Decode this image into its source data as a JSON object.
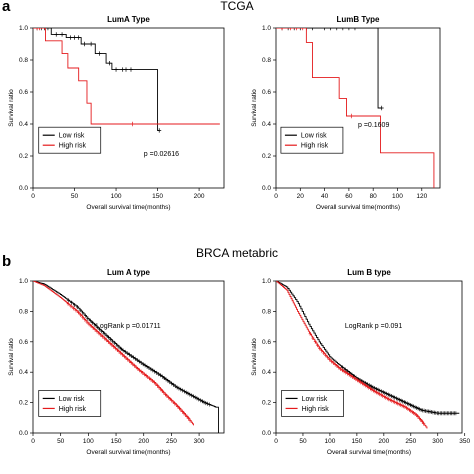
{
  "figure": {
    "section_a": {
      "letter": "a",
      "title": "TCGA"
    },
    "section_b": {
      "letter": "b",
      "title": "BRCA metabric"
    }
  },
  "chart_data": [
    {
      "type": "line",
      "title": "LumA Type",
      "xlabel": "Overall survival time(months)",
      "ylabel": "Survival ratio",
      "xlim": [
        0,
        230
      ],
      "ylim": [
        0,
        1.0
      ],
      "xticks": [
        0,
        50,
        100,
        150,
        200
      ],
      "yticks": [
        0.0,
        0.2,
        0.4,
        0.6,
        0.8,
        1.0
      ],
      "annotation": "p =0.02616",
      "legend": {
        "placement": "bottom-left",
        "entries": [
          "Low risk",
          "High risk"
        ]
      },
      "series": [
        {
          "name": "Low risk",
          "color": "#000000",
          "steps": [
            [
              0,
              1.0
            ],
            [
              22,
              0.96
            ],
            [
              40,
              0.94
            ],
            [
              58,
              0.9
            ],
            [
              75,
              0.84
            ],
            [
              88,
              0.78
            ],
            [
              95,
              0.74
            ],
            [
              150,
              0.36
            ]
          ],
          "censors": [
            [
              5,
              1.0
            ],
            [
              10,
              1.0
            ],
            [
              14,
              1.0
            ],
            [
              18,
              1.0
            ],
            [
              28,
              0.96
            ],
            [
              35,
              0.96
            ],
            [
              45,
              0.94
            ],
            [
              50,
              0.94
            ],
            [
              55,
              0.94
            ],
            [
              62,
              0.9
            ],
            [
              70,
              0.9
            ],
            [
              80,
              0.84
            ],
            [
              92,
              0.78
            ],
            [
              100,
              0.74
            ],
            [
              108,
              0.74
            ],
            [
              112,
              0.74
            ],
            [
              118,
              0.74
            ],
            [
              152,
              0.36
            ]
          ]
        },
        {
          "name": "High risk",
          "color": "#e41a1c",
          "steps": [
            [
              0,
              1.0
            ],
            [
              15,
              0.92
            ],
            [
              35,
              0.84
            ],
            [
              42,
              0.75
            ],
            [
              55,
              0.67
            ],
            [
              65,
              0.53
            ],
            [
              70,
              0.4
            ]
          ],
          "censors": [
            [
              5,
              1.0
            ],
            [
              8,
              1.0
            ],
            [
              120,
              0.4
            ]
          ],
          "end": 225
        }
      ]
    },
    {
      "type": "line",
      "title": "LumB Type",
      "xlabel": "Overall survival time(months)",
      "ylabel": "Survival ratio",
      "xlim": [
        0,
        135
      ],
      "ylim": [
        0,
        1.0
      ],
      "xticks": [
        0,
        20,
        40,
        60,
        80,
        100,
        120
      ],
      "yticks": [
        0.0,
        0.2,
        0.4,
        0.6,
        0.8,
        1.0
      ],
      "annotation": "p =0.1609",
      "legend": {
        "placement": "bottom-left",
        "entries": [
          "Low risk",
          "High risk"
        ]
      },
      "series": [
        {
          "name": "Low risk",
          "color": "#000000",
          "steps": [
            [
              0,
              1.0
            ],
            [
              84,
              0.5
            ]
          ],
          "censors": [
            [
              5,
              1.0
            ],
            [
              10,
              1.0
            ],
            [
              15,
              1.0
            ],
            [
              20,
              1.0
            ],
            [
              25,
              1.0
            ],
            [
              30,
              1.0
            ],
            [
              40,
              1.0
            ],
            [
              45,
              1.0
            ],
            [
              50,
              1.0
            ],
            [
              55,
              1.0
            ],
            [
              60,
              1.0
            ],
            [
              65,
              1.0
            ],
            [
              87,
              0.5
            ]
          ]
        },
        {
          "name": "High risk",
          "color": "#e41a1c",
          "steps": [
            [
              0,
              1.0
            ],
            [
              25,
              0.91
            ],
            [
              30,
              0.69
            ],
            [
              52,
              0.56
            ],
            [
              58,
              0.45
            ],
            [
              86,
              0.22
            ],
            [
              130,
              0.0
            ]
          ],
          "censors": [
            [
              5,
              1.0
            ],
            [
              12,
              1.0
            ],
            [
              17,
              1.0
            ],
            [
              22,
              1.0
            ],
            [
              62,
              0.45
            ]
          ]
        }
      ]
    },
    {
      "type": "line",
      "title": "Lum A type",
      "xlabel": "Overall survival time(months)",
      "ylabel": "Survival ratio",
      "xlim": [
        0,
        345
      ],
      "ylim": [
        0,
        1.0
      ],
      "xticks": [
        0,
        50,
        100,
        150,
        200,
        250,
        300
      ],
      "yticks": [
        0.0,
        0.2,
        0.4,
        0.6,
        0.8,
        1.0
      ],
      "annotation": "LogRank p =0.01711",
      "legend": {
        "placement": "bottom-left",
        "entries": [
          "Low risk",
          "High risk"
        ]
      },
      "series": [
        {
          "name": "Low risk",
          "color": "#000000",
          "curve": [
            [
              0,
              1.0
            ],
            [
              20,
              0.98
            ],
            [
              50,
              0.91
            ],
            [
              80,
              0.83
            ],
            [
              100,
              0.75
            ],
            [
              130,
              0.65
            ],
            [
              160,
              0.55
            ],
            [
              200,
              0.45
            ],
            [
              230,
              0.38
            ],
            [
              260,
              0.3
            ],
            [
              290,
              0.24
            ],
            [
              310,
              0.2
            ],
            [
              330,
              0.17
            ]
          ],
          "drop_at": 335,
          "censor_band": [
            60,
            320
          ]
        },
        {
          "name": "High risk",
          "color": "#e41a1c",
          "curve": [
            [
              0,
              1.0
            ],
            [
              20,
              0.97
            ],
            [
              50,
              0.89
            ],
            [
              80,
              0.8
            ],
            [
              100,
              0.72
            ],
            [
              130,
              0.62
            ],
            [
              160,
              0.52
            ],
            [
              190,
              0.42
            ],
            [
              220,
              0.33
            ],
            [
              240,
              0.25
            ],
            [
              260,
              0.18
            ],
            [
              280,
              0.1
            ],
            [
              290,
              0.05
            ]
          ],
          "censor_band": [
            60,
            285
          ]
        }
      ]
    },
    {
      "type": "line",
      "title": "Lum B type",
      "xlabel": "Overall survival time(months)",
      "ylabel": "Survival ratio",
      "xlim": [
        0,
        345
      ],
      "ylim": [
        0,
        1.0
      ],
      "xticks": [
        0,
        50,
        100,
        150,
        200,
        250,
        300,
        350
      ],
      "yticks": [
        0.0,
        0.2,
        0.4,
        0.6,
        0.8,
        1.0
      ],
      "annotation": "LogRank p =0.091",
      "legend": {
        "placement": "bottom-left",
        "entries": [
          "Low risk",
          "High risk"
        ]
      },
      "series": [
        {
          "name": "Low risk",
          "color": "#000000",
          "curve": [
            [
              0,
              1.0
            ],
            [
              20,
              0.96
            ],
            [
              40,
              0.86
            ],
            [
              60,
              0.72
            ],
            [
              80,
              0.6
            ],
            [
              100,
              0.5
            ],
            [
              120,
              0.44
            ],
            [
              150,
              0.36
            ],
            [
              180,
              0.3
            ],
            [
              210,
              0.25
            ],
            [
              240,
              0.2
            ],
            [
              270,
              0.15
            ],
            [
              300,
              0.13
            ],
            [
              340,
              0.13
            ]
          ],
          "censor_band": [
            120,
            335
          ]
        },
        {
          "name": "High risk",
          "color": "#e41a1c",
          "curve": [
            [
              0,
              1.0
            ],
            [
              20,
              0.94
            ],
            [
              40,
              0.8
            ],
            [
              60,
              0.67
            ],
            [
              80,
              0.56
            ],
            [
              100,
              0.48
            ],
            [
              120,
              0.42
            ],
            [
              150,
              0.35
            ],
            [
              180,
              0.28
            ],
            [
              210,
              0.22
            ],
            [
              240,
              0.17
            ],
            [
              260,
              0.12
            ],
            [
              270,
              0.08
            ],
            [
              280,
              0.03
            ]
          ],
          "censor_band": [
            60,
            275
          ]
        }
      ]
    }
  ]
}
